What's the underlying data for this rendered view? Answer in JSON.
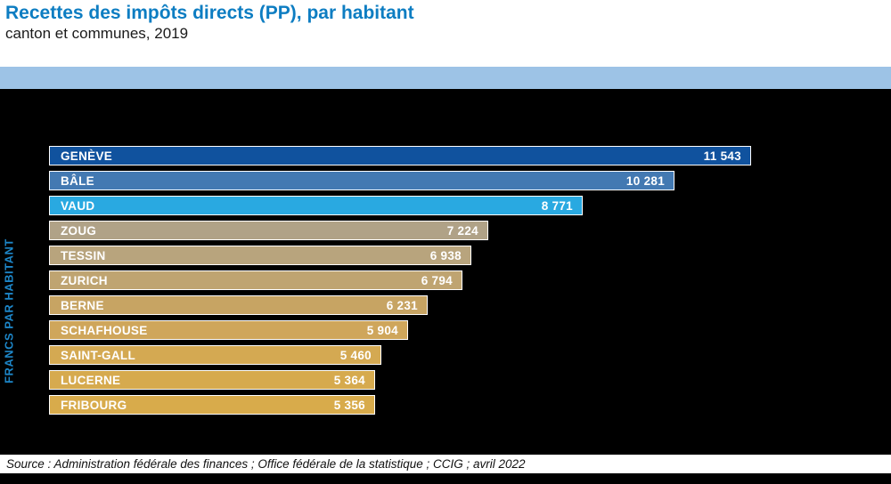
{
  "header": {
    "title": "Recettes des impôts directs (PP), par habitant",
    "subtitle": "canton et communes, 2019",
    "title_color": "#0d7dc2",
    "band_color": "#9dc3e6"
  },
  "footer": {
    "source": "Source : Administration fédérale des finances ; Office fédérale de la statistique ; CCIG ; avril 2022"
  },
  "chart_data": {
    "type": "bar",
    "orientation": "horizontal",
    "title": "Recettes des impôts directs (PP), par habitant",
    "subtitle": "canton et communes, 2019",
    "ylabel": "FRANCS PAR HABITANT",
    "xlabel": "",
    "xlim": [
      0,
      11543
    ],
    "grid": false,
    "legend": false,
    "background": "#000000",
    "categories": [
      "GENÈVE",
      "BÂLE",
      "VAUD",
      "ZOUG",
      "TESSIN",
      "ZURICH",
      "BERNE",
      "SCHAFHOUSE",
      "SAINT-GALL",
      "LUCERNE",
      "FRIBOURG"
    ],
    "values": [
      11543,
      10281,
      8771,
      7224,
      6938,
      6794,
      6231,
      5904,
      5460,
      5364,
      5356
    ],
    "value_labels": [
      "11 543",
      "10 281",
      "8 771",
      "7 224",
      "6 938",
      "6 794",
      "6 231",
      "5 904",
      "5 460",
      "5 364",
      "5 356"
    ],
    "bar_colors": [
      "#10529e",
      "#4379b2",
      "#29a9e1",
      "#b0a287",
      "#b8a47d",
      "#bfa471",
      "#c7a463",
      "#cfa65b",
      "#d4a952",
      "#d6aa4e",
      "#d8ab4b"
    ]
  }
}
